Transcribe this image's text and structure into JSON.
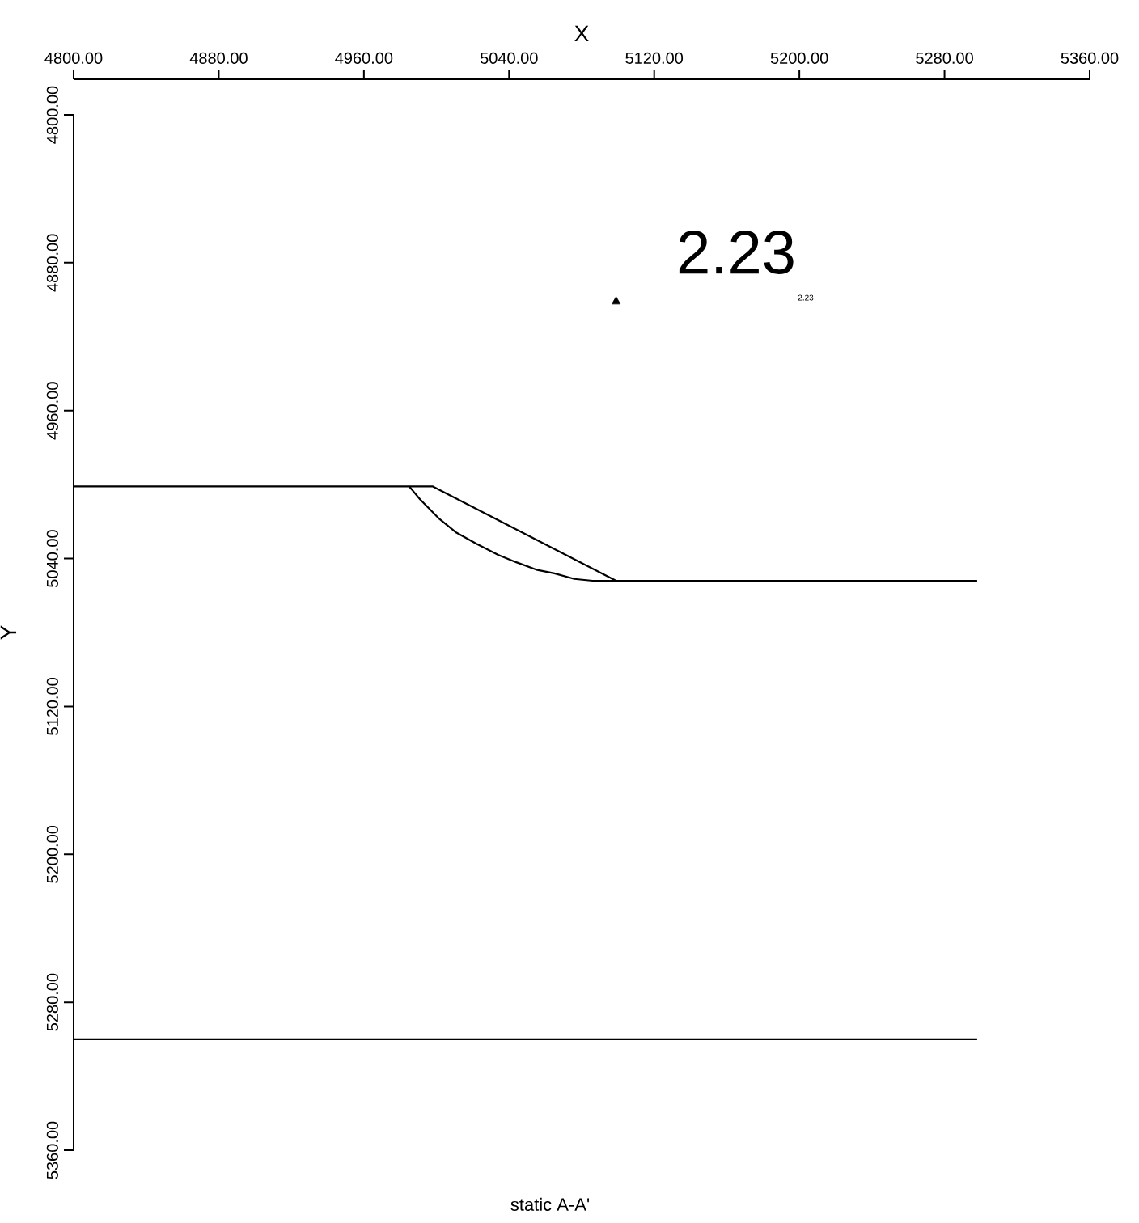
{
  "chart_data": {
    "type": "line",
    "title": "static A-A'",
    "xlabel": "X",
    "ylabel": "Y",
    "annotations": [
      "2.23",
      "2.23"
    ],
    "xlim": [
      4800,
      5360
    ],
    "ylim": [
      5360,
      4800
    ],
    "xticks": [
      {
        "value": 4800,
        "label": "4800.00"
      },
      {
        "value": 4880,
        "label": "4880.00"
      },
      {
        "value": 4960,
        "label": "4960.00"
      },
      {
        "value": 5040,
        "label": "5040.00"
      },
      {
        "value": 5120,
        "label": "5120.00"
      },
      {
        "value": 5200,
        "label": "5200.00"
      },
      {
        "value": 5280,
        "label": "5280.00"
      },
      {
        "value": 5360,
        "label": "5360.00"
      }
    ],
    "yticks": [
      {
        "value": 4800,
        "label": "4800.00"
      },
      {
        "value": 4880,
        "label": "4880.00"
      },
      {
        "value": 4960,
        "label": "4960.00"
      },
      {
        "value": 5040,
        "label": "5040.00"
      },
      {
        "value": 5120,
        "label": "5120.00"
      },
      {
        "value": 5200,
        "label": "5200.00"
      },
      {
        "value": 5280,
        "label": "5280.00"
      },
      {
        "value": 5360,
        "label": "5360.00"
      }
    ],
    "series": [
      {
        "color": "#000000",
        "x": [
          4800,
          4998,
          5099,
          5298
        ],
        "values": [
          5001,
          5001,
          5052,
          5052
        ]
      },
      {
        "color": "#000000",
        "x": [
          4985,
          4991,
          5001,
          5011,
          5022,
          5034,
          5044,
          5055,
          5065,
          5076,
          5086,
          5099
        ],
        "values": [
          5001,
          5008,
          5018,
          5026,
          5032,
          5038,
          5042,
          5046,
          5048,
          5051,
          5052,
          5052
        ]
      },
      {
        "color": "#000000",
        "x": [
          4800,
          5298
        ],
        "values": [
          5300,
          5300
        ]
      },
      {
        "type": "scatter",
        "marker": "triangle",
        "color": "#000000",
        "x": [
          5099
        ],
        "values": [
          4901
        ]
      }
    ]
  }
}
